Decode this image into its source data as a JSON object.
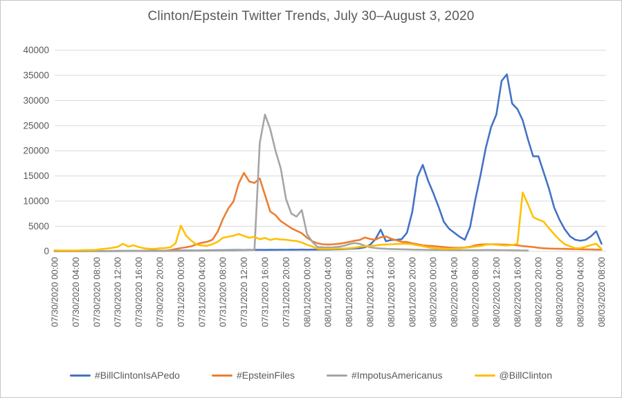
{
  "title": "Clinton/Epstein Twitter Trends, July 30–August 3, 2020",
  "text_color": "#595959",
  "grid_color": "#d9d9d9",
  "chart_data": {
    "type": "line",
    "title": "Clinton/Epstein Twitter Trends, July 30–August 3, 2020",
    "xlabel": "",
    "ylabel": "",
    "ylim": [
      0,
      40000
    ],
    "yticks": [
      0,
      5000,
      10000,
      15000,
      20000,
      25000,
      30000,
      35000,
      40000
    ],
    "grid": "horizontal",
    "legend_position": "bottom",
    "x_unit": "hourly samples, 07/30/2020 00:00 through 08/03/2020 08:00",
    "points_per_series": 105,
    "tick_interval_hours": 4,
    "tick_labels": [
      "07/30/2020 00:00",
      "07/30/2020 04:00",
      "07/30/2020 08:00",
      "07/30/2020 12:00",
      "07/30/2020 16:00",
      "07/30/2020 20:00",
      "07/31/2020 00:00",
      "07/31/2020 04:00",
      "07/31/2020 08:00",
      "07/31/2020 12:00",
      "07/31/2020 16:00",
      "07/31/2020 20:00",
      "08/01/2020 00:00",
      "08/01/2020 04:00",
      "08/01/2020 08:00",
      "08/01/2020 12:00",
      "08/01/2020 16:00",
      "08/01/2020 20:00",
      "08/02/2020 00:00",
      "08/02/2020 04:00",
      "08/02/2020 08:00",
      "08/02/2020 12:00",
      "08/02/2020 16:00",
      "08/02/2020 20:00",
      "08/03/2020 00:00",
      "08/03/2020 04:00",
      "08/03/2020 08:00"
    ],
    "series": [
      {
        "name": "#BillClintonIsAPedo",
        "color": "#4472C4",
        "values": [
          30,
          30,
          30,
          30,
          30,
          40,
          40,
          50,
          50,
          60,
          60,
          70,
          80,
          80,
          90,
          90,
          100,
          100,
          110,
          120,
          120,
          130,
          130,
          140,
          150,
          150,
          160,
          170,
          180,
          190,
          200,
          220,
          230,
          250,
          260,
          280,
          260,
          290,
          270,
          300,
          280,
          310,
          290,
          320,
          300,
          330,
          310,
          340,
          320,
          350,
          330,
          360,
          340,
          370,
          400,
          450,
          500,
          550,
          600,
          800,
          1300,
          2400,
          4300,
          2000,
          2250,
          2300,
          2400,
          3700,
          7800,
          14800,
          17200,
          14100,
          11600,
          8900,
          5900,
          4500,
          3700,
          2900,
          2300,
          4800,
          10300,
          15200,
          20600,
          24700,
          27200,
          33900,
          35200,
          29400,
          28300,
          26100,
          22300,
          18900,
          18900,
          15700,
          12500,
          8700,
          6300,
          4400,
          3000,
          2300,
          2100,
          2300,
          3000,
          4000,
          1500
        ]
      },
      {
        "name": "#EpsteinFiles",
        "color": "#ED7D31",
        "values": [
          40,
          40,
          40,
          40,
          40,
          40,
          50,
          50,
          50,
          50,
          60,
          60,
          60,
          60,
          70,
          70,
          70,
          80,
          80,
          90,
          100,
          130,
          250,
          450,
          650,
          800,
          1000,
          1400,
          1700,
          1900,
          2300,
          3900,
          6400,
          8500,
          9900,
          13500,
          15600,
          13900,
          13600,
          14500,
          11200,
          7900,
          7200,
          6000,
          5300,
          4600,
          4100,
          3600,
          2700,
          2000,
          1600,
          1400,
          1350,
          1400,
          1500,
          1650,
          1850,
          2100,
          2250,
          2750,
          2450,
          2300,
          2800,
          2950,
          2500,
          2200,
          1900,
          1850,
          1600,
          1400,
          1200,
          1100,
          1050,
          950,
          850,
          750,
          700,
          700,
          750,
          900,
          1200,
          1350,
          1400,
          1400,
          1400,
          1350,
          1300,
          1250,
          1200,
          1050,
          950,
          850,
          700,
          600,
          550,
          520,
          500,
          480,
          450,
          420,
          400,
          380,
          360,
          330,
          300
        ]
      },
      {
        "name": "#ImpotusAmericanus",
        "color": "#A5A5A5",
        "values": [
          30,
          30,
          30,
          30,
          30,
          30,
          30,
          30,
          40,
          40,
          40,
          40,
          40,
          50,
          50,
          50,
          50,
          50,
          60,
          60,
          60,
          60,
          70,
          70,
          80,
          90,
          100,
          120,
          130,
          140,
          150,
          150,
          160,
          170,
          180,
          200,
          220,
          250,
          300,
          21500,
          27200,
          24300,
          20000,
          16500,
          10400,
          7500,
          6900,
          8200,
          3400,
          1900,
          850,
          800,
          780,
          800,
          900,
          1100,
          1400,
          1650,
          1500,
          1100,
          800,
          650,
          550,
          500,
          450,
          420,
          400,
          380,
          350,
          330,
          300,
          290,
          280,
          270,
          260,
          250,
          240,
          230,
          230,
          230,
          240,
          250,
          260,
          260,
          250,
          240,
          230,
          210,
          190,
          170,
          150,
          null,
          null,
          null,
          null,
          null,
          null,
          null,
          null,
          null,
          null,
          null,
          null,
          null,
          null
        ]
      },
      {
        "name": "@BillClinton",
        "color": "#FFC000",
        "values": [
          200,
          150,
          150,
          150,
          150,
          200,
          250,
          250,
          300,
          450,
          550,
          700,
          900,
          1500,
          950,
          1200,
          850,
          600,
          500,
          480,
          600,
          650,
          800,
          1600,
          5100,
          3100,
          2100,
          1300,
          1150,
          1100,
          1400,
          1900,
          2700,
          2900,
          3100,
          3450,
          3050,
          2700,
          2900,
          2400,
          2650,
          2250,
          2500,
          2350,
          2300,
          2150,
          2050,
          1750,
          1300,
          950,
          520,
          480,
          480,
          500,
          520,
          550,
          600,
          700,
          900,
          1000,
          1050,
          1150,
          1300,
          1350,
          1400,
          1450,
          1500,
          1500,
          1400,
          1200,
          1000,
          800,
          650,
          550,
          500,
          500,
          550,
          600,
          700,
          800,
          950,
          1050,
          1300,
          1400,
          1300,
          1200,
          1150,
          1250,
          1500,
          11700,
          9400,
          6800,
          6300,
          5900,
          4600,
          3400,
          2300,
          1400,
          1000,
          600,
          650,
          900,
          1250,
          1500,
          450
        ]
      }
    ]
  }
}
